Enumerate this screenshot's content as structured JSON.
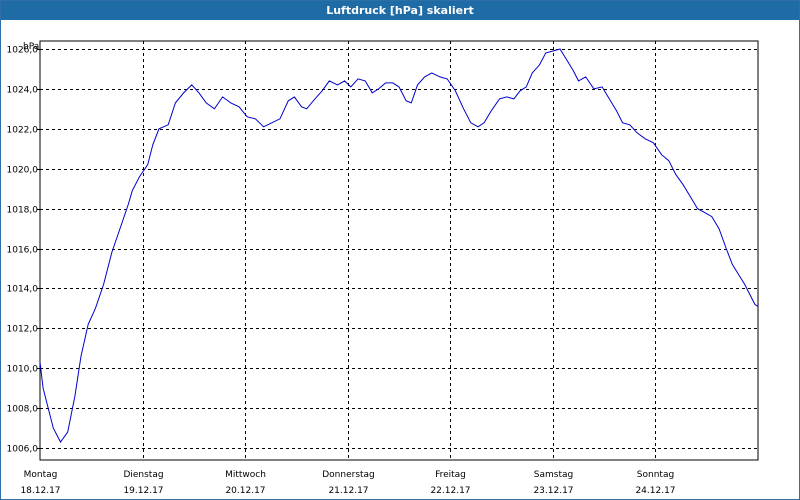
{
  "chart_data": {
    "type": "line",
    "title": "Luftdruck [hPa] skaliert",
    "ylabel": "hPa",
    "xlabel": "",
    "ylim": [
      1005.4,
      1026.4
    ],
    "yticks": [
      1006.0,
      1008.0,
      1010.0,
      1012.0,
      1014.0,
      1016.0,
      1018.0,
      1020.0,
      1022.0,
      1024.0,
      1026.0
    ],
    "ytick_labels": [
      "1006,0",
      "1008,0",
      "1010,0",
      "1012,0",
      "1014,0",
      "1016,0",
      "1018,0",
      "1020,0",
      "1022,0",
      "1024,0",
      "1026,0"
    ],
    "xlim": [
      0,
      7
    ],
    "xticks": [
      0,
      1,
      2,
      3,
      4,
      5,
      6
    ],
    "xtick_labels": [
      {
        "day": "Montag",
        "date": "18.12.17"
      },
      {
        "day": "Dienstag",
        "date": "19.12.17"
      },
      {
        "day": "Mittwoch",
        "date": "20.12.17"
      },
      {
        "day": "Donnerstag",
        "date": "21.12.17"
      },
      {
        "day": "Freitag",
        "date": "22.12.17"
      },
      {
        "day": "Samstag",
        "date": "23.12.17"
      },
      {
        "day": "Sonntag",
        "date": "24.12.17"
      }
    ],
    "grid": true,
    "line_color": "#0000cc",
    "series": [
      {
        "name": "Luftdruck",
        "points": [
          [
            0.0,
            1010.3
          ],
          [
            0.03,
            1009.0
          ],
          [
            0.08,
            1008.0
          ],
          [
            0.13,
            1007.0
          ],
          [
            0.2,
            1006.3
          ],
          [
            0.27,
            1006.8
          ],
          [
            0.34,
            1008.6
          ],
          [
            0.4,
            1010.6
          ],
          [
            0.47,
            1012.2
          ],
          [
            0.54,
            1013.0
          ],
          [
            0.62,
            1014.2
          ],
          [
            0.7,
            1015.8
          ],
          [
            0.78,
            1017.0
          ],
          [
            0.86,
            1018.2
          ],
          [
            0.9,
            1018.9
          ],
          [
            0.97,
            1019.6
          ],
          [
            1.05,
            1020.2
          ],
          [
            1.1,
            1021.2
          ],
          [
            1.16,
            1022.0
          ],
          [
            1.25,
            1022.2
          ],
          [
            1.32,
            1023.3
          ],
          [
            1.4,
            1023.8
          ],
          [
            1.48,
            1024.2
          ],
          [
            1.55,
            1023.8
          ],
          [
            1.62,
            1023.3
          ],
          [
            1.7,
            1023.0
          ],
          [
            1.78,
            1023.6
          ],
          [
            1.86,
            1023.3
          ],
          [
            1.94,
            1023.1
          ],
          [
            2.02,
            1022.6
          ],
          [
            2.1,
            1022.5
          ],
          [
            2.18,
            1022.1
          ],
          [
            2.26,
            1022.3
          ],
          [
            2.34,
            1022.5
          ],
          [
            2.42,
            1023.4
          ],
          [
            2.48,
            1023.6
          ],
          [
            2.55,
            1023.1
          ],
          [
            2.6,
            1023.0
          ],
          [
            2.68,
            1023.5
          ],
          [
            2.75,
            1023.9
          ],
          [
            2.82,
            1024.4
          ],
          [
            2.9,
            1024.2
          ],
          [
            2.97,
            1024.4
          ],
          [
            3.03,
            1024.1
          ],
          [
            3.1,
            1024.5
          ],
          [
            3.17,
            1024.4
          ],
          [
            3.24,
            1023.8
          ],
          [
            3.3,
            1024.0
          ],
          [
            3.37,
            1024.3
          ],
          [
            3.44,
            1024.3
          ],
          [
            3.5,
            1024.1
          ],
          [
            3.57,
            1023.4
          ],
          [
            3.62,
            1023.3
          ],
          [
            3.68,
            1024.2
          ],
          [
            3.75,
            1024.6
          ],
          [
            3.82,
            1024.8
          ],
          [
            3.9,
            1024.6
          ],
          [
            3.97,
            1024.5
          ],
          [
            4.05,
            1023.9
          ],
          [
            4.13,
            1023.0
          ],
          [
            4.2,
            1022.3
          ],
          [
            4.27,
            1022.1
          ],
          [
            4.33,
            1022.3
          ],
          [
            4.4,
            1022.9
          ],
          [
            4.48,
            1023.5
          ],
          [
            4.55,
            1023.6
          ],
          [
            4.62,
            1023.5
          ],
          [
            4.68,
            1023.9
          ],
          [
            4.74,
            1024.1
          ],
          [
            4.8,
            1024.8
          ],
          [
            4.87,
            1025.2
          ],
          [
            4.93,
            1025.8
          ],
          [
            5.0,
            1025.9
          ],
          [
            5.07,
            1026.0
          ],
          [
            5.13,
            1025.5
          ],
          [
            5.2,
            1024.9
          ],
          [
            5.25,
            1024.4
          ],
          [
            5.32,
            1024.6
          ],
          [
            5.4,
            1024.0
          ],
          [
            5.48,
            1024.1
          ],
          [
            5.55,
            1023.5
          ],
          [
            5.62,
            1022.9
          ],
          [
            5.68,
            1022.3
          ],
          [
            5.75,
            1022.2
          ],
          [
            5.82,
            1021.8
          ],
          [
            5.9,
            1021.5
          ],
          [
            5.98,
            1021.3
          ],
          [
            6.06,
            1020.7
          ],
          [
            6.13,
            1020.4
          ],
          [
            6.2,
            1019.7
          ],
          [
            6.27,
            1019.2
          ],
          [
            6.34,
            1018.6
          ],
          [
            6.41,
            1018.0
          ],
          [
            6.48,
            1017.8
          ],
          [
            6.55,
            1017.6
          ],
          [
            6.62,
            1017.0
          ],
          [
            6.69,
            1016.0
          ],
          [
            6.75,
            1015.2
          ],
          [
            6.81,
            1014.7
          ],
          [
            6.87,
            1014.2
          ],
          [
            6.93,
            1013.6
          ],
          [
            6.97,
            1013.2
          ],
          [
            7.0,
            1013.1
          ]
        ]
      }
    ]
  }
}
